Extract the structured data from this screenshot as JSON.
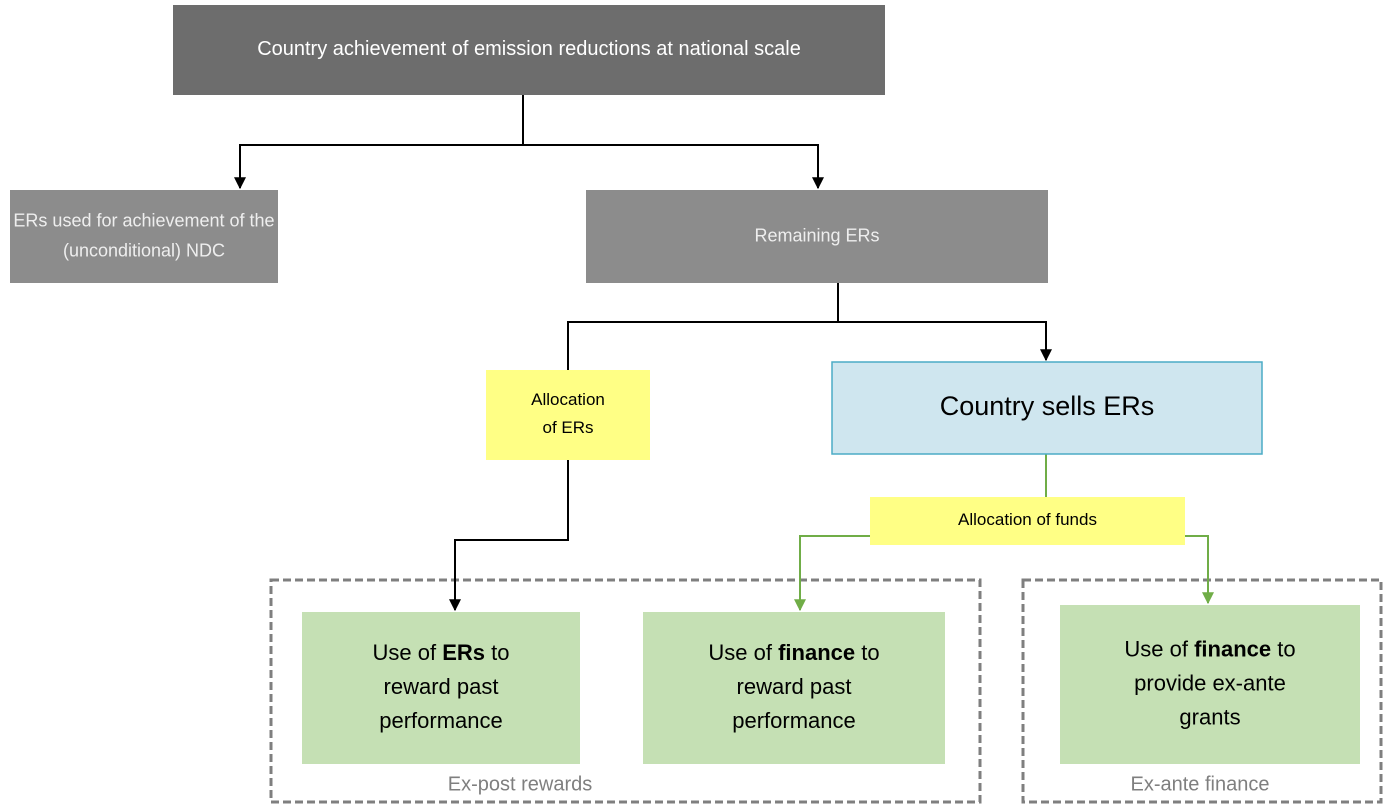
{
  "nodes": [
    {
      "lines": [
        [
          {
            "text": "Country achievement of emission reductions at national scale"
          }
        ]
      ]
    },
    {
      "lines": [
        [
          {
            "text": "ERs used for achievement of the"
          }
        ],
        [
          {
            "text": "(unconditional) NDC"
          }
        ]
      ]
    },
    {
      "lines": [
        [
          {
            "text": "Remaining ERs"
          }
        ]
      ]
    },
    {
      "lines": [
        [
          {
            "text": "Allocation"
          }
        ],
        [
          {
            "text": "of ERs"
          }
        ]
      ]
    },
    {
      "lines": [
        [
          {
            "text": "Country sells ERs"
          }
        ]
      ]
    },
    {
      "lines": [
        [
          {
            "text": "Allocation of funds"
          }
        ]
      ]
    },
    {
      "lines": [
        [
          {
            "text": "Use of "
          },
          {
            "text": "ERs",
            "bold": true
          },
          {
            "text": " to"
          }
        ],
        [
          {
            "text": "reward past"
          }
        ],
        [
          {
            "text": "performance"
          }
        ]
      ]
    },
    {
      "lines": [
        [
          {
            "text": "Use of "
          },
          {
            "text": "finance",
            "bold": true
          },
          {
            "text": " to"
          }
        ],
        [
          {
            "text": "reward past"
          }
        ],
        [
          {
            "text": "performance"
          }
        ]
      ]
    },
    {
      "lines": [
        [
          {
            "text": "Use of "
          },
          {
            "text": "finance",
            "bold": true
          },
          {
            "text": " to"
          }
        ],
        [
          {
            "text": "provide ex-ante"
          }
        ],
        [
          {
            "text": "grants"
          }
        ]
      ]
    }
  ],
  "groups": [
    {
      "label": "Ex-post rewards"
    },
    {
      "label": "Ex-ante finance"
    }
  ]
}
